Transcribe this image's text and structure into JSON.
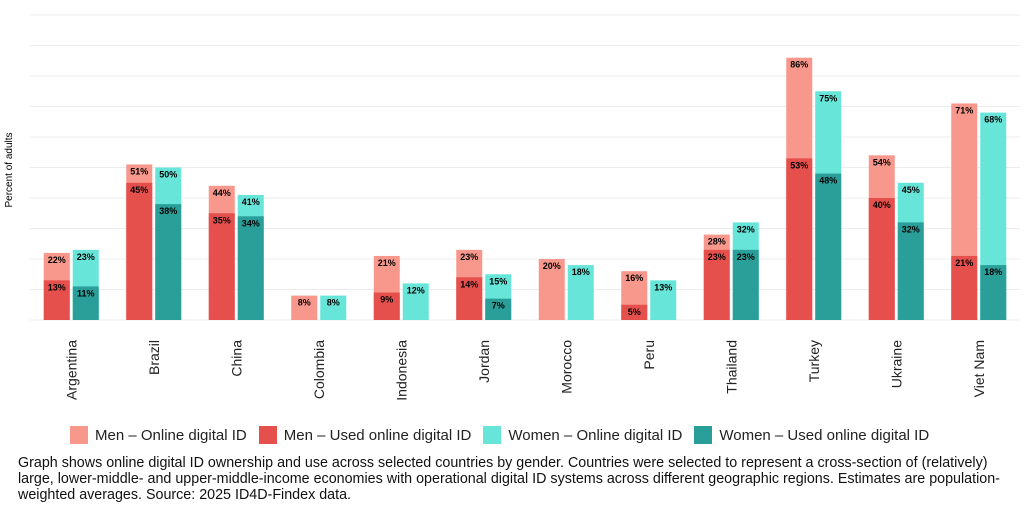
{
  "chart_data": {
    "type": "bar",
    "ylabel": "Percent of adults",
    "xlabel": "",
    "ylim": [
      0,
      100
    ],
    "grid": true,
    "legend_placement": "bottom",
    "categories": [
      "Argentina",
      "Brazil",
      "China",
      "Colombia",
      "Indonesia",
      "Jordan",
      "Morocco",
      "Peru",
      "Thailand",
      "Turkey",
      "Ukraine",
      "Viet Nam"
    ],
    "series": [
      {
        "name": "Men – Online digital ID",
        "group": "men",
        "kind": "online",
        "color": "#f8978b",
        "values": [
          22,
          51,
          44,
          8,
          21,
          23,
          20,
          16,
          28,
          86,
          54,
          71
        ]
      },
      {
        "name": "Men – Used online digital ID",
        "group": "men",
        "kind": "used",
        "color": "#e5504d",
        "values": [
          13,
          45,
          35,
          null,
          9,
          14,
          null,
          5,
          23,
          53,
          40,
          21
        ]
      },
      {
        "name": "Women – Online digital ID",
        "group": "women",
        "kind": "online",
        "color": "#66e5d8",
        "values": [
          23,
          50,
          41,
          8,
          12,
          15,
          18,
          13,
          32,
          75,
          45,
          68
        ]
      },
      {
        "name": "Women – Used online digital ID",
        "group": "women",
        "kind": "used",
        "color": "#2a9f99",
        "values": [
          11,
          38,
          34,
          null,
          null,
          7,
          null,
          null,
          23,
          48,
          32,
          18
        ]
      }
    ]
  },
  "caption": "Graph shows online digital ID ownership and use across selected countries by gender. Countries were selected to represent a cross-section of (relatively) large, lower-middle- and upper-middle-income economies with operational digital ID systems across different geographic regions. Estimates are population-weighted averages. Source: 2025 ID4D-Findex data."
}
